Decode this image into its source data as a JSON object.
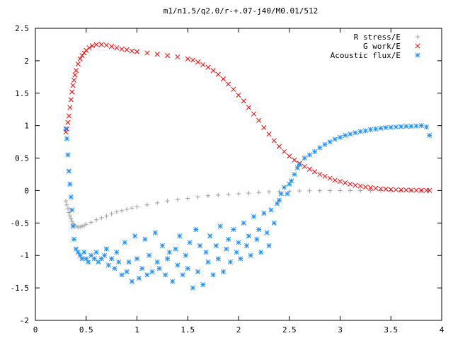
{
  "chart_data": {
    "type": "scatter",
    "title": "m1/n1.5/q2.0/r-+.07-j40/M0.01/512",
    "xlabel": "",
    "ylabel": "",
    "xlim": [
      0,
      4
    ],
    "ylim": [
      -2,
      2.5
    ],
    "x_ticks": [
      "0",
      "0.5",
      "1",
      "1.5",
      "2",
      "2.5",
      "3",
      "3.5",
      "4"
    ],
    "y_ticks": [
      "2.5",
      "2",
      "1.5",
      "1",
      "0.5",
      "0",
      "-0.5",
      "-1",
      "-1.5",
      "-2"
    ],
    "x_tick_values": [
      0,
      0.5,
      1,
      1.5,
      2,
      2.5,
      3,
      3.5,
      4
    ],
    "y_tick_values": [
      2.5,
      2,
      1.5,
      1,
      0.5,
      0,
      -0.5,
      -1,
      -1.5,
      -2
    ],
    "grid": false,
    "legend_position": "top-right",
    "series": [
      {
        "name": "R stress/E",
        "marker": "plus",
        "color": "#a0a0a0",
        "x": [
          0.3,
          0.31,
          0.32,
          0.33,
          0.34,
          0.35,
          0.36,
          0.37,
          0.38,
          0.4,
          0.42,
          0.44,
          0.46,
          0.48,
          0.5,
          0.55,
          0.6,
          0.65,
          0.7,
          0.75,
          0.8,
          0.85,
          0.9,
          0.95,
          1.0,
          1.1,
          1.2,
          1.3,
          1.4,
          1.5,
          1.6,
          1.7,
          1.8,
          1.9,
          2.0,
          2.1,
          2.2,
          2.3,
          2.4,
          2.5,
          2.6,
          2.7,
          2.8,
          2.9,
          3.0,
          3.1,
          3.2,
          3.3,
          3.4,
          3.5,
          3.6,
          3.7,
          3.8,
          3.87
        ],
        "y": [
          -0.16,
          -0.22,
          -0.28,
          -0.34,
          -0.39,
          -0.43,
          -0.47,
          -0.5,
          -0.53,
          -0.55,
          -0.56,
          -0.56,
          -0.55,
          -0.54,
          -0.52,
          -0.49,
          -0.45,
          -0.42,
          -0.39,
          -0.36,
          -0.33,
          -0.31,
          -0.29,
          -0.27,
          -0.25,
          -0.22,
          -0.19,
          -0.16,
          -0.14,
          -0.12,
          -0.1,
          -0.08,
          -0.07,
          -0.06,
          -0.05,
          -0.04,
          -0.03,
          -0.02,
          -0.015,
          -0.01,
          -0.006,
          -0.004,
          -0.002,
          -0.001,
          0,
          0,
          0,
          0,
          0,
          0,
          0,
          0,
          0,
          0
        ]
      },
      {
        "name": "G work/E",
        "marker": "cross",
        "color": "#ff0000",
        "x": [
          0.3,
          0.31,
          0.32,
          0.33,
          0.34,
          0.35,
          0.36,
          0.37,
          0.38,
          0.39,
          0.4,
          0.42,
          0.44,
          0.46,
          0.48,
          0.5,
          0.53,
          0.56,
          0.6,
          0.65,
          0.7,
          0.75,
          0.8,
          0.85,
          0.9,
          0.95,
          1.0,
          1.1,
          1.2,
          1.3,
          1.4,
          1.5,
          1.55,
          1.6,
          1.65,
          1.7,
          1.75,
          1.8,
          1.85,
          1.9,
          1.95,
          2.0,
          2.05,
          2.1,
          2.15,
          2.2,
          2.25,
          2.3,
          2.35,
          2.4,
          2.45,
          2.5,
          2.55,
          2.6,
          2.65,
          2.7,
          2.75,
          2.8,
          2.85,
          2.9,
          2.95,
          3.0,
          3.05,
          3.1,
          3.15,
          3.2,
          3.25,
          3.3,
          3.35,
          3.4,
          3.45,
          3.5,
          3.55,
          3.6,
          3.65,
          3.7,
          3.75,
          3.8,
          3.85,
          3.88
        ],
        "y": [
          0.9,
          0.95,
          1.05,
          1.15,
          1.28,
          1.4,
          1.52,
          1.62,
          1.7,
          1.78,
          1.85,
          1.95,
          2.03,
          2.08,
          2.12,
          2.16,
          2.2,
          2.23,
          2.25,
          2.25,
          2.24,
          2.22,
          2.2,
          2.18,
          2.17,
          2.15,
          2.14,
          2.12,
          2.1,
          2.08,
          2.06,
          2.03,
          2.01,
          1.98,
          1.94,
          1.9,
          1.85,
          1.79,
          1.72,
          1.64,
          1.56,
          1.47,
          1.38,
          1.28,
          1.18,
          1.08,
          0.97,
          0.87,
          0.77,
          0.68,
          0.6,
          0.53,
          0.47,
          0.42,
          0.37,
          0.33,
          0.29,
          0.25,
          0.22,
          0.19,
          0.16,
          0.14,
          0.12,
          0.1,
          0.08,
          0.07,
          0.055,
          0.045,
          0.035,
          0.028,
          0.022,
          0.017,
          0.013,
          0.01,
          0.008,
          0.006,
          0.004,
          0.003,
          0.002,
          0.002
        ]
      },
      {
        "name": "Acoustic flux/E",
        "marker": "star",
        "color": "#1e90ff",
        "x": [
          0.3,
          0.31,
          0.32,
          0.33,
          0.34,
          0.35,
          0.36,
          0.37,
          0.38,
          0.4,
          0.42,
          0.44,
          0.46,
          0.48,
          0.5,
          0.52,
          0.55,
          0.58,
          0.6,
          0.62,
          0.65,
          0.68,
          0.7,
          0.72,
          0.75,
          0.78,
          0.8,
          0.82,
          0.85,
          0.88,
          0.9,
          0.92,
          0.95,
          0.98,
          1.0,
          1.02,
          1.05,
          1.08,
          1.1,
          1.12,
          1.15,
          1.18,
          1.2,
          1.22,
          1.25,
          1.28,
          1.3,
          1.32,
          1.35,
          1.38,
          1.4,
          1.42,
          1.45,
          1.48,
          1.5,
          1.52,
          1.55,
          1.58,
          1.6,
          1.62,
          1.65,
          1.68,
          1.7,
          1.72,
          1.75,
          1.78,
          1.8,
          1.82,
          1.85,
          1.88,
          1.9,
          1.92,
          1.95,
          1.98,
          2.0,
          2.02,
          2.05,
          2.08,
          2.1,
          2.12,
          2.15,
          2.18,
          2.2,
          2.22,
          2.25,
          2.28,
          2.3,
          2.32,
          2.35,
          2.38,
          2.4,
          2.42,
          2.45,
          2.48,
          2.5,
          2.52,
          2.55,
          2.58,
          2.6,
          2.65,
          2.7,
          2.75,
          2.8,
          2.85,
          2.9,
          2.95,
          3.0,
          3.05,
          3.1,
          3.15,
          3.2,
          3.25,
          3.3,
          3.35,
          3.4,
          3.45,
          3.5,
          3.55,
          3.6,
          3.65,
          3.7,
          3.75,
          3.8,
          3.85,
          3.88
        ],
        "y": [
          0.95,
          0.8,
          0.55,
          0.3,
          0.1,
          -0.1,
          -0.3,
          -0.55,
          -0.75,
          -0.9,
          -0.95,
          -1.0,
          -1.05,
          -0.95,
          -1.05,
          -1.1,
          -1.0,
          -1.05,
          -0.95,
          -1.1,
          -1.05,
          -1.0,
          -0.9,
          -1.15,
          -1.05,
          -1.2,
          -0.95,
          -1.1,
          -1.3,
          -0.8,
          -1.25,
          -1.1,
          -1.4,
          -0.7,
          -1.05,
          -1.35,
          -1.2,
          -0.75,
          -1.3,
          -1.0,
          -1.25,
          -0.65,
          -1.1,
          -1.2,
          -0.85,
          -1.3,
          -1.05,
          -0.95,
          -1.4,
          -0.9,
          -1.15,
          -0.7,
          -1.3,
          -1.0,
          -1.2,
          -0.8,
          -1.5,
          -0.6,
          -1.25,
          -0.85,
          -1.45,
          -0.95,
          -1.1,
          -0.7,
          -1.3,
          -0.85,
          -1.05,
          -0.55,
          -1.25,
          -0.9,
          -0.75,
          -1.1,
          -0.6,
          -0.95,
          -0.8,
          -1.05,
          -0.5,
          -0.85,
          -0.7,
          -1.0,
          -0.4,
          -0.75,
          -0.6,
          -0.95,
          -0.35,
          -0.65,
          -0.85,
          -0.3,
          -0.5,
          -0.2,
          -0.15,
          -0.05,
          0.05,
          -0.05,
          0.1,
          0.15,
          0.25,
          0.35,
          0.4,
          0.5,
          0.55,
          0.6,
          0.66,
          0.71,
          0.75,
          0.79,
          0.82,
          0.85,
          0.87,
          0.89,
          0.91,
          0.92,
          0.94,
          0.95,
          0.96,
          0.97,
          0.975,
          0.98,
          0.985,
          0.99,
          0.99,
          0.995,
          1.0,
          0.98,
          0.85
        ]
      }
    ]
  }
}
